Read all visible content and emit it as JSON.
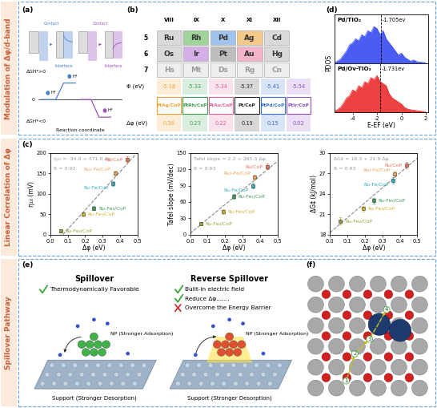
{
  "sections": [
    "Modulation of Δφ/d-band",
    "Linear Correlation of Δφ",
    "Spillover Pathway"
  ],
  "panel_labels": [
    "(a)",
    "(b)",
    "(c)",
    "(d)",
    "(e)",
    "(f)"
  ],
  "panel_a": {
    "positive": "ΔGH*>0",
    "negative": "ΔGH*<0",
    "contact": "Contact",
    "interface": "Interface",
    "zero": "0",
    "xlabel": "Reaction coordinate",
    "adsorbate": "H*"
  },
  "panel_b": {
    "groups": [
      "VIII",
      "IX",
      "X",
      "XI",
      "XII"
    ],
    "periods": [
      "5",
      "6",
      "7"
    ],
    "elements": [
      [
        "Ru",
        "Rh",
        "Pd",
        "Ag",
        "Cd"
      ],
      [
        "Os",
        "Ir",
        "Pt",
        "Au",
        "Hg"
      ],
      [
        "Hs",
        "Mt",
        "Ds",
        "Rg",
        "Cn"
      ]
    ],
    "work_function_label": "Φ (eV)",
    "work_functions": [
      -5.18,
      -5.33,
      -5.34,
      -5.37,
      -5.41,
      -5.54
    ],
    "catalysts": [
      "PtAg/CoP",
      "PtRh/CoP",
      "PtAu/CoP",
      "Pt/CoP",
      "PtPd/CoP",
      "PtIr/CoP"
    ],
    "colors": [
      "#f0a030",
      "#3aa050",
      "#e0609a",
      "#222222",
      "#3070d0",
      "#9050c0"
    ],
    "delta_label": "Δφ (eV)",
    "delta_phi": [
      0.36,
      0.23,
      0.22,
      0.19,
      0.15,
      0.02
    ]
  },
  "chart_data": [
    {
      "type": "scatter",
      "marker": "square",
      "xlabel": "Δφ (eV)",
      "ylabel": "η₁₀ (mV)",
      "xlim": [
        0.0,
        0.5
      ],
      "xticks": [
        0.0,
        0.1,
        0.2,
        0.3,
        0.4,
        0.5
      ],
      "ylim": [
        0,
        200
      ],
      "yticks": [
        0,
        50,
        100,
        150,
        200
      ],
      "fit": {
        "intercept": -34.0,
        "slope": 471.8
      },
      "equation": "η₁₀ = -34.0 + 471.8 Δφ",
      "r_label": "R = 0.92",
      "series": [
        {
          "name": "Ru/CoP",
          "color": "#e8735a",
          "x": [
            0.44
          ],
          "values": [
            185
          ],
          "errors": [
            6
          ]
        },
        {
          "name": "Ru₃-Fe/CoP",
          "color": "#f0a050",
          "x": [
            0.37
          ],
          "values": [
            150
          ],
          "errors": [
            6
          ]
        },
        {
          "name": "Ru-Fe/CoP",
          "color": "#30b0c0",
          "x": [
            0.36
          ],
          "values": [
            125
          ],
          "errors": [
            6
          ]
        },
        {
          "name": "Ru-Fe₂/CoP",
          "color": "#3a9a5a",
          "x": [
            0.25
          ],
          "values": [
            65
          ],
          "errors": [
            5
          ]
        },
        {
          "name": "Ru-Fe₃/CoP",
          "color": "#c8b030",
          "x": [
            0.19
          ],
          "values": [
            50
          ],
          "errors": [
            5
          ]
        },
        {
          "name": "Ru-Fe₄/CoP",
          "color": "#9aa030",
          "x": [
            0.06
          ],
          "values": [
            10
          ],
          "errors": [
            4
          ]
        }
      ]
    },
    {
      "type": "scatter",
      "marker": "square",
      "xlabel": "Δφ (eV)",
      "ylabel": "Tafel slope (mV/dec)",
      "xlim": [
        0.0,
        0.5
      ],
      "xticks": [
        0.0,
        0.1,
        0.2,
        0.3,
        0.4,
        0.5
      ],
      "ylim": [
        0,
        150
      ],
      "yticks": [
        0,
        30,
        60,
        90,
        120,
        150
      ],
      "fit": {
        "intercept": 2.2,
        "slope": 265.3
      },
      "equation": "Tafel slope = 2.2 + 265.3 Δφ",
      "r_label": "R = 0.93",
      "series": [
        {
          "name": "Ru/CoP",
          "color": "#e8735a",
          "x": [
            0.44
          ],
          "values": [
            125
          ],
          "errors": [
            5
          ]
        },
        {
          "name": "Ru₃-Fe/CoP",
          "color": "#f0a050",
          "x": [
            0.37
          ],
          "values": [
            105
          ],
          "errors": [
            5
          ]
        },
        {
          "name": "Ru-Fe/CoP",
          "color": "#30b0c0",
          "x": [
            0.36
          ],
          "values": [
            90
          ],
          "errors": [
            5
          ]
        },
        {
          "name": "Ru-Fe₂/CoP",
          "color": "#3a9a5a",
          "x": [
            0.25
          ],
          "values": [
            70
          ],
          "errors": [
            4
          ]
        },
        {
          "name": "Ru-Fe₃/CoP",
          "color": "#c8b030",
          "x": [
            0.19
          ],
          "values": [
            42
          ],
          "errors": [
            4
          ]
        },
        {
          "name": "Ru-Fe₄/CoP",
          "color": "#9aa030",
          "x": [
            0.06
          ],
          "values": [
            20
          ],
          "errors": [
            3
          ]
        }
      ]
    },
    {
      "type": "scatter",
      "marker": "square",
      "xlabel": "Δφ (eV)",
      "ylabel": "ΔG‡ (kJ/mol)",
      "xlim": [
        0.0,
        0.5
      ],
      "xticks": [
        0.0,
        0.1,
        0.2,
        0.3,
        0.4,
        0.5
      ],
      "ylim": [
        18,
        30
      ],
      "yticks": [
        18,
        21,
        24,
        27,
        30
      ],
      "fit": {
        "intercept": 18.3,
        "slope": 21.9
      },
      "equation": "ΔG‡ = 18.3 + 21.9 Δφ",
      "r_label": "R = 0.93",
      "series": [
        {
          "name": "Ru/CoP",
          "color": "#e8735a",
          "x": [
            0.44
          ],
          "values": [
            28.2
          ],
          "errors": [
            0.5
          ]
        },
        {
          "name": "Ru₃-Fe/CoP",
          "color": "#f0a050",
          "x": [
            0.37
          ],
          "values": [
            26.9
          ],
          "errors": [
            0.5
          ]
        },
        {
          "name": "Ru-Fe/CoP",
          "color": "#30b0c0",
          "x": [
            0.36
          ],
          "values": [
            26.0
          ],
          "errors": [
            0.5
          ]
        },
        {
          "name": "Ru-Fe₂/CoP",
          "color": "#3a9a5a",
          "x": [
            0.25
          ],
          "values": [
            23.0
          ],
          "errors": [
            0.4
          ]
        },
        {
          "name": "Ru-Fe₃/CoP",
          "color": "#c8b030",
          "x": [
            0.19
          ],
          "values": [
            21.8
          ],
          "errors": [
            0.4
          ]
        },
        {
          "name": "Ru-Fe₄/CoP",
          "color": "#9aa030",
          "x": [
            0.06
          ],
          "values": [
            20.0
          ],
          "errors": [
            0.5
          ]
        }
      ]
    }
  ],
  "panel_d": {
    "type": "area",
    "xlabel": "E-EF (eV)",
    "ylabel": "PDOS",
    "xlim": [
      -5.5,
      2.2
    ],
    "xticks": [
      -4,
      -2,
      0,
      2
    ],
    "ylim": [
      0,
      1.2
    ],
    "tick_labels": "x",
    "x": [
      -5.5,
      -5.25,
      -5.0,
      -4.75,
      -4.5,
      -4.25,
      -4.0,
      -3.75,
      -3.5,
      -3.25,
      -3.0,
      -2.75,
      -2.5,
      -2.25,
      -2.0,
      -1.75,
      -1.5,
      -1.25,
      -1.0,
      -0.75,
      -0.5,
      -0.25,
      0.0,
      0.25,
      0.5,
      0.75,
      1.0,
      1.25,
      1.5,
      1.75,
      2.0
    ],
    "series": [
      {
        "name": "Pd/TiO₂",
        "color": "#2a3ff0",
        "d_band_center": -1.705,
        "center_label": "-1.705ev",
        "values": [
          0.02,
          0.05,
          0.1,
          0.2,
          0.3,
          0.45,
          0.5,
          0.6,
          0.55,
          0.7,
          0.65,
          0.8,
          0.75,
          0.9,
          0.85,
          0.7,
          0.8,
          0.6,
          0.5,
          0.4,
          0.3,
          0.2,
          0.25,
          0.15,
          0.1,
          0.05,
          0.08,
          0.04,
          0.03,
          0.02,
          0.01
        ]
      },
      {
        "name": "Pd/Ov-TiO₂",
        "color": "#e82020",
        "d_band_center": -1.731,
        "center_label": "-1.731ev",
        "values": [
          0.03,
          0.06,
          0.12,
          0.22,
          0.35,
          0.4,
          0.55,
          0.5,
          0.65,
          0.6,
          0.75,
          0.7,
          0.85,
          0.8,
          0.9,
          0.75,
          0.7,
          0.65,
          0.45,
          0.35,
          0.3,
          0.25,
          0.2,
          0.12,
          0.08,
          0.06,
          0.05,
          0.04,
          0.03,
          0.02,
          0.01
        ]
      }
    ]
  },
  "panel_e": {
    "left": {
      "title": "Spillover",
      "checks": [
        "Thermodynamically Favorable"
      ],
      "np": "NP (Stronger Adsorption)",
      "support": "Support (Stronger Desorption)"
    },
    "right": {
      "title": "Reverse Spillover",
      "checks": [
        "Built-in electric field",
        "Reduce Δφ......."
      ],
      "cross": "Overcome the Energy Barrier",
      "np": "NP (Stronger Adsorption)",
      "support": "Support (Stronger Desorption)"
    }
  },
  "panel_f": {
    "path_labels": [
      "1",
      "2",
      "3",
      "4"
    ]
  }
}
